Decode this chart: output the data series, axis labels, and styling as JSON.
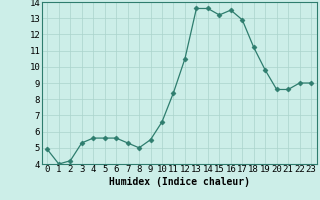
{
  "x": [
    0,
    1,
    2,
    3,
    4,
    5,
    6,
    7,
    8,
    9,
    10,
    11,
    12,
    13,
    14,
    15,
    16,
    17,
    18,
    19,
    20,
    21,
    22,
    23
  ],
  "y": [
    4.9,
    4.0,
    4.2,
    5.3,
    5.6,
    5.6,
    5.6,
    5.3,
    5.0,
    5.5,
    6.6,
    8.4,
    10.5,
    13.6,
    13.6,
    13.2,
    13.5,
    12.9,
    11.2,
    9.8,
    8.6,
    8.6,
    9.0,
    9.0
  ],
  "xlabel": "Humidex (Indice chaleur)",
  "ylim": [
    4,
    14
  ],
  "xlim": [
    -0.5,
    23.5
  ],
  "yticks": [
    4,
    5,
    6,
    7,
    8,
    9,
    10,
    11,
    12,
    13,
    14
  ],
  "xticks": [
    0,
    1,
    2,
    3,
    4,
    5,
    6,
    7,
    8,
    9,
    10,
    11,
    12,
    13,
    14,
    15,
    16,
    17,
    18,
    19,
    20,
    21,
    22,
    23
  ],
  "line_color": "#2e7d6e",
  "marker": "D",
  "marker_size": 2.5,
  "bg_color": "#cceee8",
  "grid_color": "#aad4cc",
  "xlabel_fontsize": 7,
  "tick_fontsize": 6.5
}
